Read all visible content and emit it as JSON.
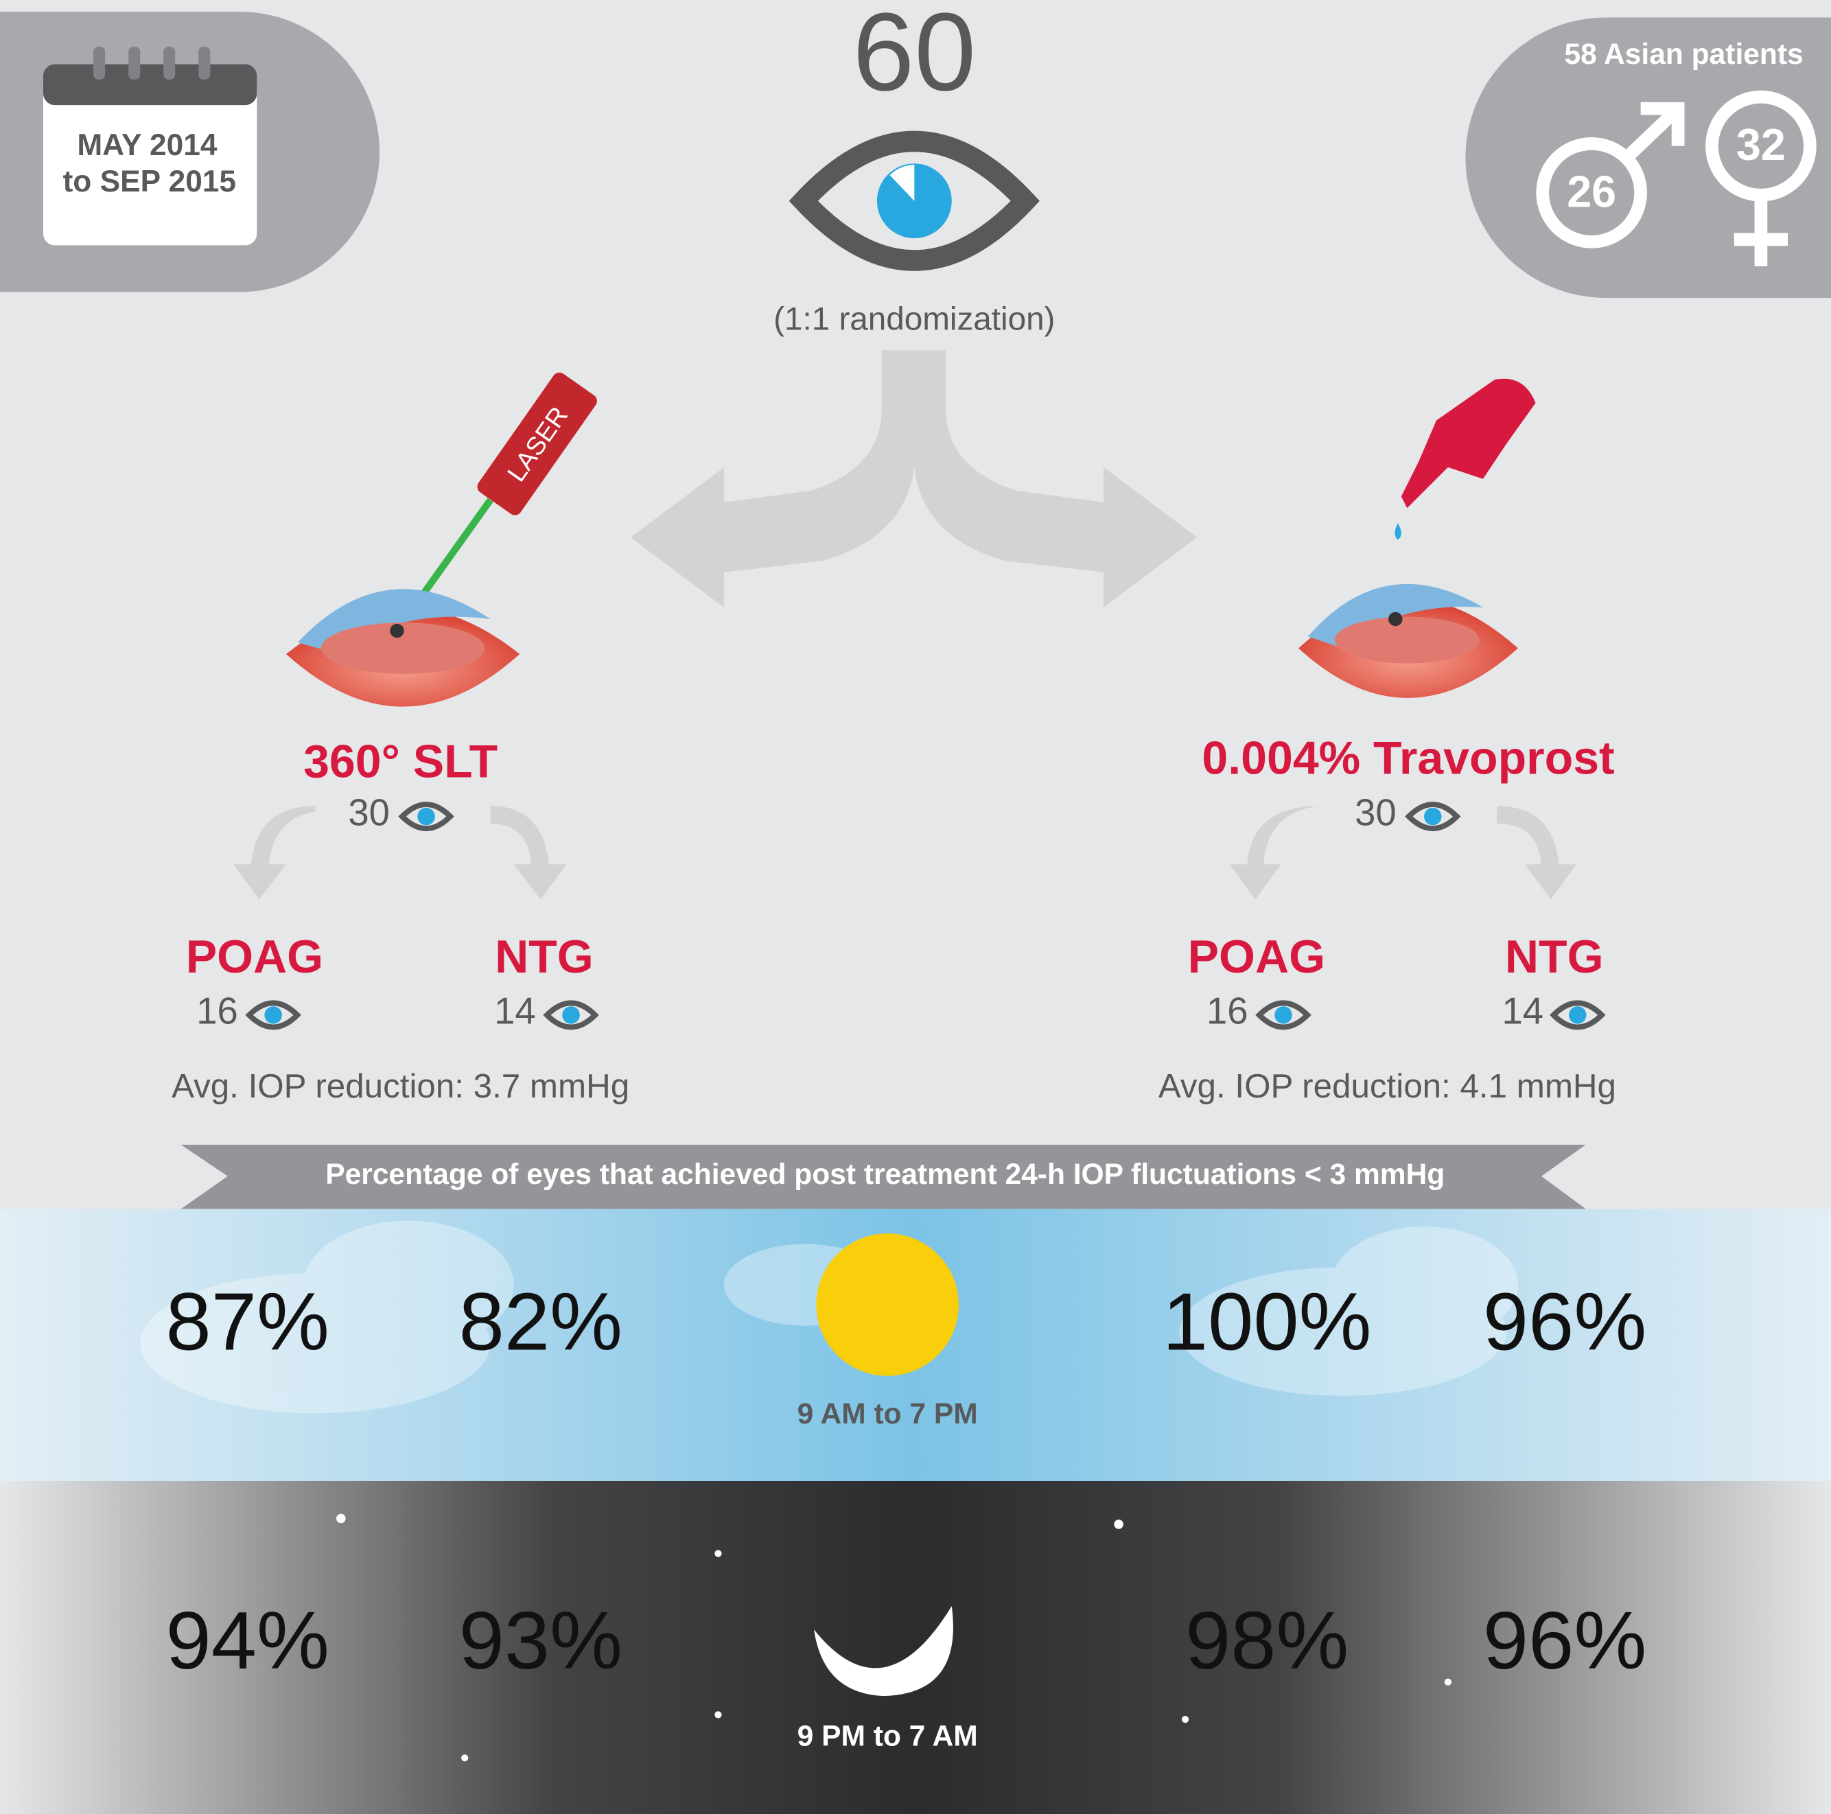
{
  "study_period": {
    "line1": "MAY 2014",
    "line2": "to SEP 2015"
  },
  "total_eyes": {
    "count": "60",
    "note": "(1:1 randomization)"
  },
  "patients": {
    "label": "58 Asian patients",
    "male": "26",
    "female": "32"
  },
  "arms": [
    {
      "icon_label": "LASER",
      "name": "360° SLT",
      "eyes": "30",
      "groups": [
        {
          "name": "POAG",
          "eyes": "16"
        },
        {
          "name": "NTG",
          "eyes": "14"
        }
      ],
      "avg_reduction": "Avg. IOP reduction: 3.7 mmHg"
    },
    {
      "name": "0.004% Travoprost",
      "eyes": "30",
      "groups": [
        {
          "name": "POAG",
          "eyes": "16"
        },
        {
          "name": "NTG",
          "eyes": "14"
        }
      ],
      "avg_reduction": "Avg. IOP reduction: 4.1 mmHg"
    }
  ],
  "banner": "Percentage of eyes that achieved post treatment 24-h IOP fluctuations < 3 mmHg",
  "periods": [
    {
      "label": "9 AM to 7 PM",
      "values": [
        "87%",
        "82%",
        "100%",
        "96%"
      ]
    },
    {
      "label": "9 PM to 7 AM",
      "values": [
        "94%",
        "93%",
        "98%",
        "96%"
      ]
    }
  ]
}
